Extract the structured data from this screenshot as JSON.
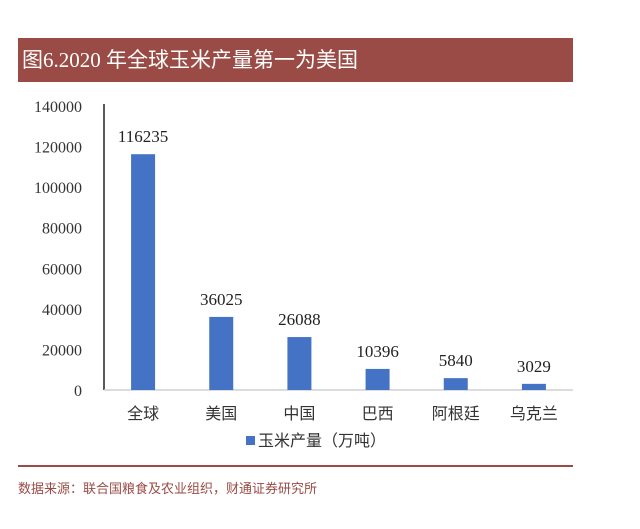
{
  "title": "图6.2020 年全球玉米产量第一为美国",
  "source": "数据来源：联合国粮食及农业组织，财通证券研究所",
  "chart_data": {
    "type": "bar",
    "categories": [
      "全球",
      "美国",
      "中国",
      "巴西",
      "阿根廷",
      "乌克兰"
    ],
    "series": [
      {
        "name": "玉米产量（万吨）",
        "values": [
          116235,
          36025,
          26088,
          10396,
          5840,
          3029
        ],
        "color": "#4472c4"
      }
    ],
    "ylim": [
      0,
      140000
    ],
    "yticks": [
      0,
      20000,
      40000,
      60000,
      80000,
      100000,
      120000,
      140000
    ],
    "grid": false,
    "legend": "bottom",
    "data_labels": true
  }
}
